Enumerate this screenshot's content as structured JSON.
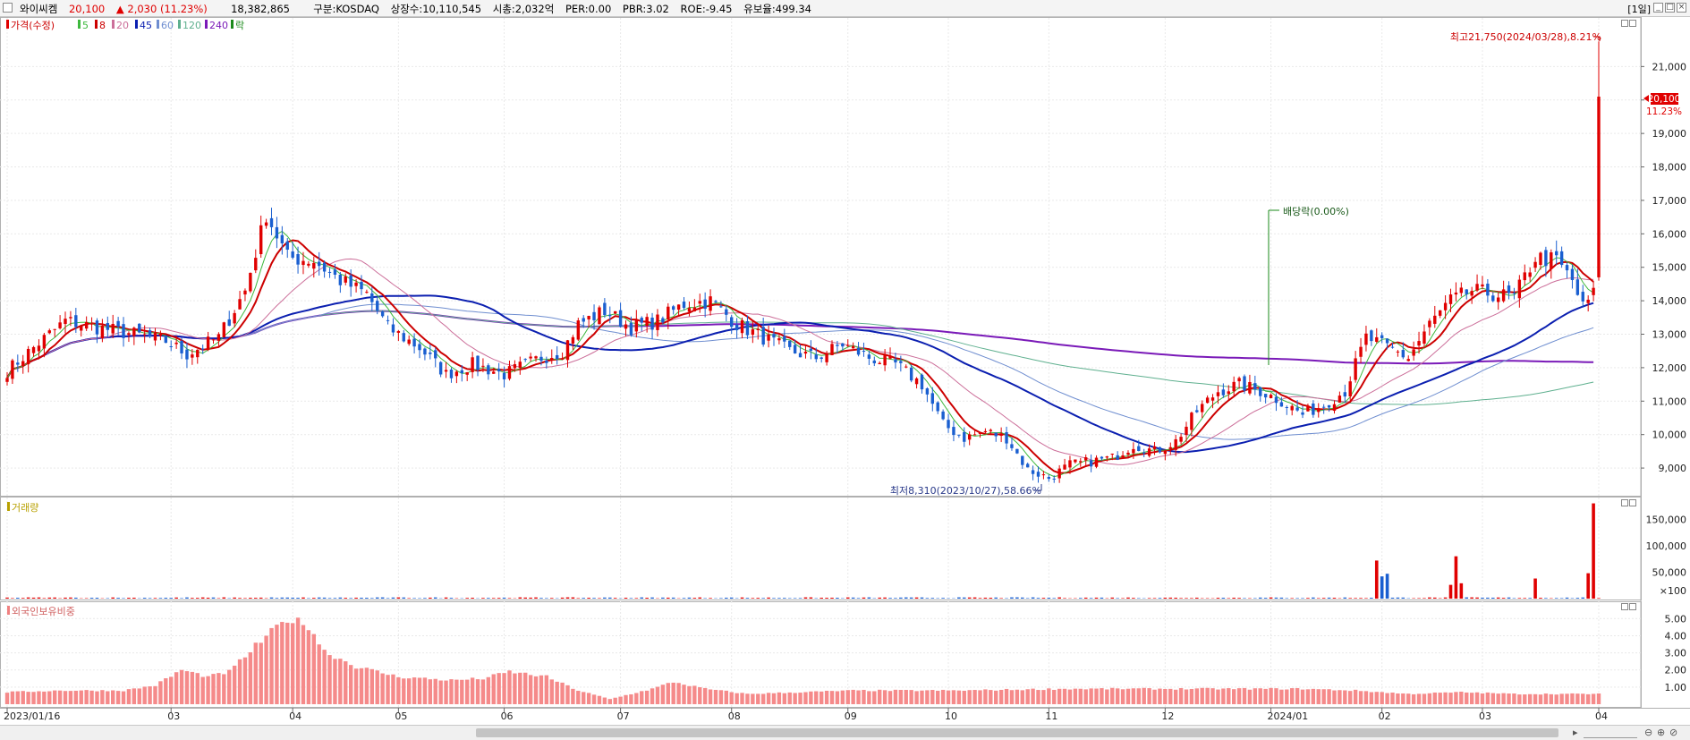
{
  "header": {
    "stock_name": "와이씨켐",
    "price": "20,100",
    "change": "▲ 2,030 (11.23%)",
    "volume": "18,382,865",
    "stats": [
      "구분:KOSDAQ",
      "상장수:10,110,545",
      "시총:2,032억",
      "PER:0.00",
      "PBR:3.02",
      "ROE:-9.45",
      "유보율:499.34"
    ],
    "period": "[1일]"
  },
  "legend_labels": {
    "price": "가격(수정)",
    "ma5": "5",
    "ma8": "8",
    "ma20": "20",
    "ma45": "45",
    "ma60": "60",
    "ma120": "120",
    "ma240": "240",
    "ex": "락"
  },
  "colors": {
    "up": "#e00000",
    "down": "#1a5fd0",
    "ma5": "#3db83d",
    "ma8": "#cc0000",
    "ma20": "#cc6f9a",
    "ma45": "#0b1fb0",
    "ma60": "#6f8ed0",
    "ma120": "#5fb08f",
    "ma240": "#7a1ab8",
    "foreign": "#f58a8a",
    "grid": "#e9e9e9",
    "text_label": "#000000"
  },
  "chart_data": [
    {
      "type": "candlestick",
      "title": "가격(수정)",
      "ylim": [
        8200,
        22400
      ],
      "y_ticks": [
        9000,
        10000,
        11000,
        12000,
        13000,
        14000,
        15000,
        16000,
        17000,
        18000,
        19000,
        20000,
        21000
      ],
      "y_tick_labels": [
        "9,000",
        "10,000",
        "11,000",
        "12,000",
        "13,000",
        "14,000",
        "15,000",
        "16,000",
        "17,000",
        "18,000",
        "19,000",
        "",
        "21,000"
      ],
      "x_labels": [
        {
          "label": "2023/01/16",
          "i": 0
        },
        {
          "label": "03",
          "i": 31
        },
        {
          "label": "04",
          "i": 54
        },
        {
          "label": "05",
          "i": 74
        },
        {
          "label": "06",
          "i": 94
        },
        {
          "label": "07",
          "i": 116
        },
        {
          "label": "08",
          "i": 137
        },
        {
          "label": "09",
          "i": 159
        },
        {
          "label": "10",
          "i": 178
        },
        {
          "label": "11",
          "i": 197
        },
        {
          "label": "12",
          "i": 219
        },
        {
          "label": "2024/01",
          "i": 239
        },
        {
          "label": "02",
          "i": 260
        },
        {
          "label": "03",
          "i": 279
        },
        {
          "label": "04",
          "i": 301
        }
      ],
      "anchors": [
        [
          0,
          11900
        ],
        [
          5,
          12600
        ],
        [
          11,
          13400
        ],
        [
          17,
          13200
        ],
        [
          24,
          13000
        ],
        [
          30,
          12800
        ],
        [
          34,
          12400
        ],
        [
          40,
          12900
        ],
        [
          45,
          14300
        ],
        [
          49,
          16600
        ],
        [
          53,
          15300
        ],
        [
          58,
          15200
        ],
        [
          63,
          14600
        ],
        [
          68,
          14200
        ],
        [
          72,
          13200
        ],
        [
          78,
          12600
        ],
        [
          83,
          11800
        ],
        [
          88,
          12100
        ],
        [
          94,
          11800
        ],
        [
          101,
          12300
        ],
        [
          105,
          12500
        ],
        [
          108,
          13300
        ],
        [
          113,
          13700
        ],
        [
          118,
          13200
        ],
        [
          123,
          13400
        ],
        [
          128,
          13900
        ],
        [
          133,
          14000
        ],
        [
          138,
          13300
        ],
        [
          143,
          12900
        ],
        [
          148,
          12500
        ],
        [
          153,
          12300
        ],
        [
          158,
          12700
        ],
        [
          163,
          12300
        ],
        [
          168,
          12100
        ],
        [
          173,
          11500
        ],
        [
          177,
          10300
        ],
        [
          181,
          9900
        ],
        [
          185,
          10100
        ],
        [
          189,
          9900
        ],
        [
          193,
          8950
        ],
        [
          197,
          8700
        ],
        [
          201,
          9100
        ],
        [
          205,
          9200
        ],
        [
          209,
          9300
        ],
        [
          213,
          9700
        ],
        [
          217,
          9500
        ],
        [
          221,
          9800
        ],
        [
          225,
          10700
        ],
        [
          229,
          11300
        ],
        [
          233,
          11500
        ],
        [
          237,
          11300
        ],
        [
          241,
          11000
        ],
        [
          245,
          10600
        ],
        [
          249,
          10900
        ],
        [
          253,
          11300
        ],
        [
          257,
          12900
        ],
        [
          261,
          12600
        ],
        [
          265,
          12300
        ],
        [
          269,
          13300
        ],
        [
          273,
          14000
        ],
        [
          277,
          14300
        ],
        [
          281,
          14200
        ],
        [
          285,
          14100
        ],
        [
          289,
          15300
        ],
        [
          293,
          15200
        ],
        [
          296,
          14600
        ],
        [
          298,
          13800
        ],
        [
          300,
          14200
        ]
      ],
      "last_candle": {
        "open": 14700,
        "high": 21750,
        "low": 14600,
        "close": 20100
      },
      "current_price_label": "20,100",
      "current_change_label": "11.23%",
      "annotations": {
        "high": "최고21,750(2024/03/28),8.21%",
        "low": "최저8,310(2023/10/27),58.66%",
        "dividend": "배당락(0.00%)"
      }
    },
    {
      "type": "bar",
      "title": "거래량",
      "ylim": [
        0,
        1860
      ],
      "y_tick_labels": [
        "150,000",
        "100,000",
        "50,000",
        "×100"
      ],
      "y_ticks": [
        1500,
        1000,
        500,
        0
      ],
      "spikes": [
        {
          "i": 259,
          "value": 720
        },
        {
          "i": 260,
          "value": 420
        },
        {
          "i": 261,
          "value": 470
        },
        {
          "i": 273,
          "value": 260
        },
        {
          "i": 274,
          "value": 800
        },
        {
          "i": 275,
          "value": 290
        },
        {
          "i": 289,
          "value": 380
        },
        {
          "i": 299,
          "value": 480
        },
        {
          "i": 300,
          "value": 1800
        }
      ]
    },
    {
      "type": "bar",
      "title": "외국인보유비중",
      "ylim": [
        0,
        5.8
      ],
      "y_tick_labels": [
        "5.00",
        "4.00",
        "3.00",
        "2.00",
        "1.00"
      ],
      "y_ticks": [
        5,
        4,
        3,
        2,
        1
      ],
      "anchors": [
        [
          0,
          0.7
        ],
        [
          10,
          0.8
        ],
        [
          22,
          0.8
        ],
        [
          28,
          1.1
        ],
        [
          33,
          2.0
        ],
        [
          38,
          1.6
        ],
        [
          42,
          1.9
        ],
        [
          47,
          3.4
        ],
        [
          53,
          5.0
        ],
        [
          57,
          4.6
        ],
        [
          60,
          3.1
        ],
        [
          66,
          2.2
        ],
        [
          74,
          1.6
        ],
        [
          84,
          1.4
        ],
        [
          90,
          1.5
        ],
        [
          95,
          1.9
        ],
        [
          102,
          1.6
        ],
        [
          108,
          0.8
        ],
        [
          114,
          0.3
        ],
        [
          122,
          0.9
        ],
        [
          126,
          1.3
        ],
        [
          132,
          0.9
        ],
        [
          140,
          0.6
        ],
        [
          150,
          0.7
        ],
        [
          160,
          0.8
        ],
        [
          180,
          0.8
        ],
        [
          200,
          0.9
        ],
        [
          215,
          0.9
        ],
        [
          225,
          0.9
        ],
        [
          235,
          0.9
        ],
        [
          245,
          0.9
        ],
        [
          255,
          0.8
        ],
        [
          265,
          0.6
        ],
        [
          275,
          0.7
        ],
        [
          285,
          0.6
        ],
        [
          300,
          0.6
        ]
      ]
    }
  ]
}
